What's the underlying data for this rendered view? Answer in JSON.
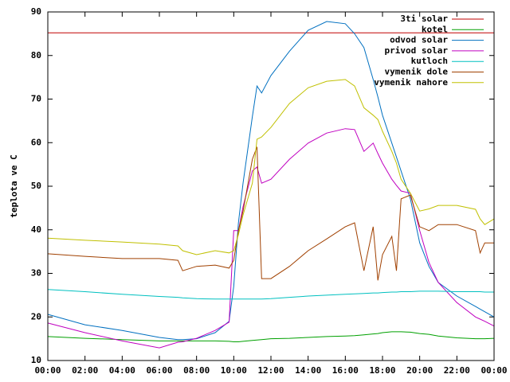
{
  "chart_data": {
    "type": "line",
    "ylabel": "teplota ve C",
    "x": [
      0,
      2,
      4,
      6,
      7,
      7.25,
      8,
      9,
      9.75,
      10,
      10.25,
      10.5,
      11,
      11.25,
      11.5,
      12,
      13,
      14,
      15,
      16,
      16.5,
      17,
      17.5,
      17.75,
      18,
      18.5,
      18.75,
      19,
      19.5,
      20,
      20.5,
      21,
      22,
      23,
      23.25,
      23.5,
      24
    ],
    "xlim": [
      0,
      24
    ],
    "xticks": [
      {
        "value": 0,
        "label": "00:00"
      },
      {
        "value": 2,
        "label": "02:00"
      },
      {
        "value": 4,
        "label": "04:00"
      },
      {
        "value": 6,
        "label": "06:00"
      },
      {
        "value": 8,
        "label": "08:00"
      },
      {
        "value": 10,
        "label": "10:00"
      },
      {
        "value": 12,
        "label": "12:00"
      },
      {
        "value": 14,
        "label": "14:00"
      },
      {
        "value": 16,
        "label": "16:00"
      },
      {
        "value": 18,
        "label": "18:00"
      },
      {
        "value": 20,
        "label": "20:00"
      },
      {
        "value": 22,
        "label": "22:00"
      },
      {
        "value": 24,
        "label": "00:00"
      }
    ],
    "ylim": [
      10,
      90
    ],
    "yticks": [
      10,
      20,
      30,
      40,
      50,
      60,
      70,
      80,
      90
    ],
    "legend": "top-right",
    "series": [
      {
        "name": "3ti solar",
        "color": "#c00000",
        "values": [
          85.2,
          85.2,
          85.2,
          85.2,
          85.2,
          85.2,
          85.2,
          85.2,
          85.2,
          85.2,
          85.2,
          85.2,
          85.2,
          85.2,
          85.2,
          85.2,
          85.2,
          85.2,
          85.2,
          85.2,
          85.2,
          85.2,
          85.2,
          85.2,
          85.2,
          85.2,
          85.2,
          85.2,
          85.2,
          85.2,
          85.2,
          85.2,
          85.2,
          85.2,
          85.2,
          85.2,
          85.2
        ]
      },
      {
        "name": "kotel",
        "color": "#00a000",
        "values": [
          15.5,
          15.1,
          14.8,
          14.5,
          14.5,
          14.5,
          14.5,
          14.5,
          14.4,
          14.3,
          14.3,
          14.4,
          14.6,
          14.7,
          14.8,
          15,
          15.1,
          15.3,
          15.5,
          15.6,
          15.7,
          15.9,
          16.1,
          16.2,
          16.4,
          16.6,
          16.6,
          16.6,
          16.5,
          16.2,
          16,
          15.6,
          15.2,
          15,
          15,
          15,
          15.1
        ]
      },
      {
        "name": "odvod solar",
        "color": "#0070c0",
        "values": [
          20.6,
          18.2,
          16.9,
          15.3,
          14.8,
          14.8,
          15,
          16.4,
          19,
          27,
          41.6,
          50.7,
          66,
          73,
          71.4,
          75.4,
          81,
          85.8,
          87.8,
          87.3,
          85,
          81.8,
          74.5,
          70.5,
          66.3,
          59.9,
          56.7,
          53.5,
          47.1,
          37,
          31.6,
          27.9,
          24.8,
          22.4,
          21.8,
          21.2,
          20
        ]
      },
      {
        "name": "privod solar",
        "color": "#c000c0",
        "values": [
          18.6,
          16.4,
          14.5,
          12.9,
          14.2,
          14.3,
          15.1,
          16.9,
          18.8,
          39.8,
          39.8,
          45.3,
          53.5,
          54.4,
          50.7,
          51.6,
          56.2,
          59.9,
          62.2,
          63.2,
          63,
          58,
          59.9,
          57.5,
          55.3,
          51.6,
          50.2,
          48.9,
          48.4,
          39.8,
          32.5,
          27.9,
          23.3,
          20,
          19.5,
          19,
          17.9
        ]
      },
      {
        "name": "kutloch",
        "color": "#00c0c0",
        "values": [
          26.3,
          25.8,
          25.2,
          24.7,
          24.5,
          24.4,
          24.2,
          24.1,
          24.1,
          24.1,
          24.1,
          24.1,
          24.1,
          24.1,
          24.1,
          24.2,
          24.5,
          24.8,
          25,
          25.2,
          25.3,
          25.4,
          25.5,
          25.5,
          25.6,
          25.7,
          25.7,
          25.8,
          25.8,
          25.9,
          25.9,
          25.9,
          25.8,
          25.8,
          25.8,
          25.7,
          25.7
        ]
      },
      {
        "name": "vymenik dole",
        "color": "#a04000",
        "values": [
          34.5,
          33.9,
          33.4,
          33.4,
          33,
          30.6,
          31.6,
          31.9,
          31.2,
          33,
          39.8,
          44.3,
          56.2,
          59,
          28.8,
          28.8,
          31.6,
          35.2,
          37.9,
          40.7,
          41.6,
          30.6,
          40.7,
          28.4,
          34.3,
          38.5,
          30.6,
          47.1,
          48,
          40.7,
          39.8,
          41.2,
          41.2,
          39.8,
          34.7,
          37,
          37
        ]
      },
      {
        "name": "vymenik nahore",
        "color": "#c0c000",
        "values": [
          38.1,
          37.6,
          37.2,
          36.7,
          36.3,
          35.2,
          34.3,
          35.2,
          34.7,
          35.2,
          38.9,
          43.4,
          50.7,
          60.8,
          61.3,
          63.5,
          69,
          72.6,
          74.1,
          74.5,
          73,
          68,
          66.3,
          65.3,
          62.6,
          58,
          55.3,
          51.6,
          48.4,
          44.3,
          44.8,
          45.6,
          45.6,
          44.7,
          42.5,
          41.2,
          42.5
        ]
      }
    ]
  }
}
